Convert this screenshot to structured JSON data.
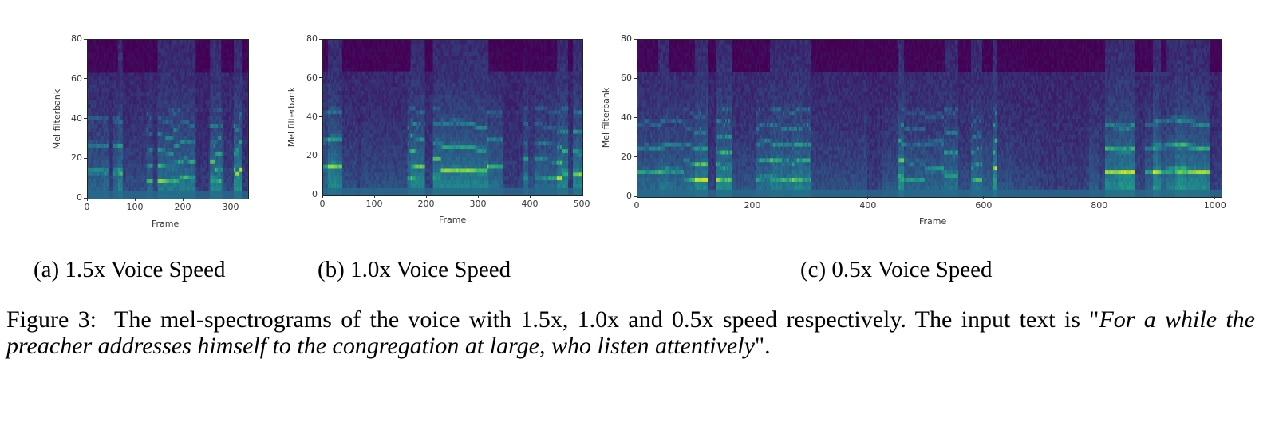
{
  "figure": {
    "number": "Figure 3:",
    "caption_main": "The mel-spectrograms of the voice with 1.5x, 1.0x and 0.5x speed respectively.  The input text is \"",
    "caption_quote": "For a while the preacher addresses himself to the congregation at large, who listen attentively",
    "caption_end": "\"."
  },
  "colors": {
    "viridis": [
      "#440154",
      "#3b1d6a",
      "#31487f",
      "#26698c",
      "#1f8a8a",
      "#27a97a",
      "#52c25b",
      "#9bd93c",
      "#dde318",
      "#fde725"
    ],
    "axis": "#333333"
  },
  "chart_data": [
    {
      "type": "heatmap",
      "panel": "a",
      "subcaption": "(a) 1.5x Voice Speed",
      "xlabel": "Frame",
      "ylabel": "Mel filterbank",
      "xlim": [
        0,
        335
      ],
      "ylim": [
        0,
        80
      ],
      "xticks": [
        0,
        100,
        200,
        300
      ],
      "yticks": [
        0,
        20,
        40,
        60,
        80
      ],
      "colormap": "viridis",
      "grid": false,
      "seed": 11,
      "silences": [
        [
          40,
          50
        ],
        [
          133,
          145
        ],
        [
          225,
          255
        ],
        [
          320,
          335
        ]
      ],
      "voiced": [
        [
          0,
          40
        ],
        [
          60,
          130
        ],
        [
          150,
          222
        ],
        [
          258,
          318
        ]
      ]
    },
    {
      "type": "heatmap",
      "panel": "b",
      "subcaption": "(b) 1.0x Voice Speed",
      "xlabel": "Frame",
      "ylabel": "Mel filterbank",
      "xlim": [
        0,
        500
      ],
      "ylim": [
        0,
        80
      ],
      "xticks": [
        0,
        100,
        200,
        300,
        400,
        500
      ],
      "yticks": [
        0,
        20,
        40,
        60,
        80
      ],
      "colormap": "viridis",
      "grid": false,
      "seed": 23,
      "silences": [
        [
          62,
          72
        ],
        [
          195,
          210
        ],
        [
          345,
          385
        ],
        [
          470,
          480
        ]
      ],
      "voiced": [
        [
          0,
          60
        ],
        [
          72,
          190
        ],
        [
          212,
          342
        ],
        [
          388,
          470
        ],
        [
          480,
          500
        ]
      ]
    },
    {
      "type": "heatmap",
      "panel": "c",
      "subcaption": "(c) 0.5x Voice Speed",
      "xlabel": "Frame",
      "ylabel": "Mel filterbank",
      "xlim": [
        0,
        1010
      ],
      "ylim": [
        0,
        80
      ],
      "xticks": [
        0,
        200,
        400,
        600,
        800,
        1000
      ],
      "yticks": [
        0,
        20,
        40,
        60,
        80
      ],
      "colormap": "viridis",
      "grid": false,
      "seed": 37,
      "silences": [
        [
          120,
          135
        ],
        [
          395,
          420
        ],
        [
          690,
          780
        ],
        [
          990,
          1010
        ]
      ],
      "voiced": [
        [
          0,
          118
        ],
        [
          138,
          392
        ],
        [
          422,
          688
        ],
        [
          782,
          988
        ]
      ]
    }
  ]
}
